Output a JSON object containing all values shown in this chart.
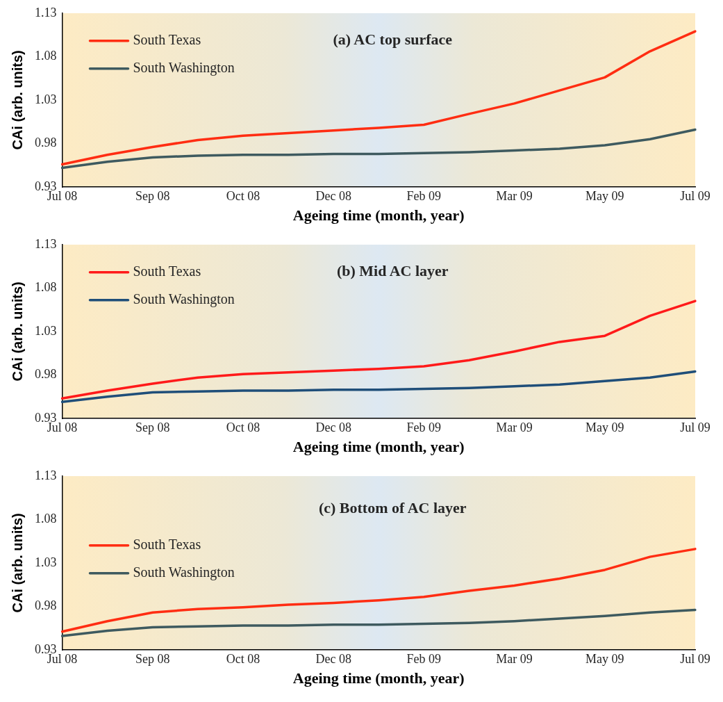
{
  "chart_data": [
    {
      "type": "line",
      "title": "(a) AC top surface",
      "xlabel": "Ageing time (month, year)",
      "ylabel": "CAi (arb. units)",
      "categories": [
        "Jul 08",
        null,
        "Sep 08",
        null,
        "Oct 08",
        null,
        "Dec 08",
        null,
        "Feb 09",
        null,
        "Mar 09",
        null,
        "May 09",
        null,
        "Jul 09"
      ],
      "ylim": [
        0.93,
        1.13
      ],
      "yticks": [
        0.93,
        0.98,
        1.03,
        1.08,
        1.13
      ],
      "grid": false,
      "legend": "top left",
      "series": [
        {
          "name": "South Texas",
          "color": "#ff2d12",
          "values": [
            0.956,
            0.967,
            0.976,
            0.984,
            0.989,
            0.992,
            0.995,
            0.998,
            1.0015,
            1.014,
            1.026,
            1.041,
            1.056,
            1.086,
            1.109
          ]
        },
        {
          "name": "South Washington",
          "color": "#3e5a5f",
          "values": [
            0.952,
            0.959,
            0.964,
            0.966,
            0.967,
            0.967,
            0.968,
            0.968,
            0.969,
            0.97,
            0.972,
            0.974,
            0.978,
            0.985,
            0.996
          ]
        }
      ]
    },
    {
      "type": "line",
      "title": "(b) Mid AC layer",
      "xlabel": "Ageing time (month, year)",
      "ylabel": "CAi (arb. units)",
      "categories": [
        "Jul 08",
        null,
        "Sep 08",
        null,
        "Oct 08",
        null,
        "Dec 08",
        null,
        "Feb 09",
        null,
        "Mar 09",
        null,
        "May 09",
        null,
        "Jul 09"
      ],
      "ylim": [
        0.93,
        1.13
      ],
      "yticks": [
        0.93,
        0.98,
        1.03,
        1.08,
        1.13
      ],
      "grid": false,
      "legend": "top left",
      "series": [
        {
          "name": "South Texas",
          "color": "#ff1a1a",
          "values": [
            0.953,
            0.962,
            0.97,
            0.977,
            0.981,
            0.983,
            0.985,
            0.987,
            0.99,
            0.997,
            1.007,
            1.018,
            1.025,
            1.048,
            1.065
          ]
        },
        {
          "name": "South Washington",
          "color": "#1f4e79",
          "values": [
            0.949,
            0.955,
            0.96,
            0.961,
            0.962,
            0.962,
            0.963,
            0.963,
            0.964,
            0.965,
            0.967,
            0.969,
            0.973,
            0.977,
            0.984
          ]
        }
      ]
    },
    {
      "type": "line",
      "title": "(c) Bottom of AC layer",
      "xlabel": "Ageing time (month, year)",
      "ylabel": "CAi (arb. units)",
      "categories": [
        "Jul 08",
        null,
        "Sep 08",
        null,
        "Oct 08",
        null,
        "Dec 08",
        null,
        "Feb 09",
        null,
        "Mar 09",
        null,
        "May 09",
        null,
        "Jul 09"
      ],
      "ylim": [
        0.93,
        1.13
      ],
      "yticks": [
        0.93,
        0.98,
        1.03,
        1.08,
        1.13
      ],
      "grid": false,
      "legend": "top left",
      "series": [
        {
          "name": "South Texas",
          "color": "#ff2d12",
          "values": [
            0.951,
            0.963,
            0.973,
            0.977,
            0.979,
            0.982,
            0.984,
            0.987,
            0.991,
            0.998,
            1.004,
            1.012,
            1.022,
            1.037,
            1.046
          ]
        },
        {
          "name": "South Washington",
          "color": "#3e5a5f",
          "values": [
            0.946,
            0.952,
            0.956,
            0.957,
            0.958,
            0.958,
            0.959,
            0.959,
            0.96,
            0.961,
            0.963,
            0.966,
            0.969,
            0.973,
            0.976
          ]
        }
      ]
    }
  ]
}
